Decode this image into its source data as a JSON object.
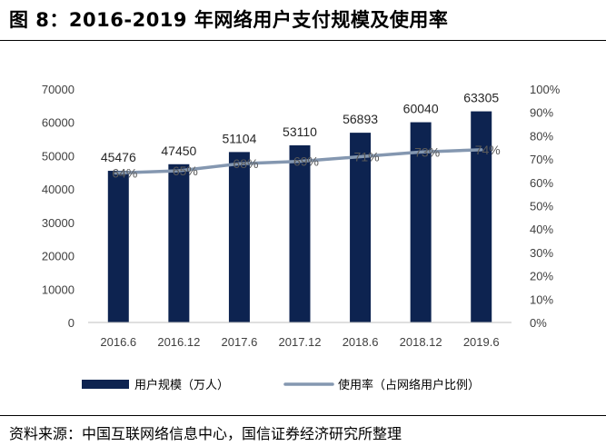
{
  "header": {
    "title": "图 8：2016-2019 年网络用户支付规模及使用率"
  },
  "footer": {
    "source": "资料来源：中国互联网络信息中心，国信证券经济研究所整理"
  },
  "colors": {
    "bar": "#0d2350",
    "line": "#8497b0",
    "axis": "#bfbfbf"
  },
  "chart_data": {
    "type": "bar",
    "title": "2016-2019 年网络用户支付规模及使用率",
    "categories": [
      "2016.6",
      "2016.12",
      "2017.6",
      "2017.12",
      "2018.6",
      "2018.12",
      "2019.6"
    ],
    "series": [
      {
        "name": "用户规模（万人）",
        "type": "bar",
        "axis": "left",
        "values": [
          45476,
          47450,
          51104,
          53110,
          56893,
          60040,
          63305
        ],
        "labels": [
          "45476",
          "47450",
          "51104",
          "53110",
          "56893",
          "60040",
          "63305"
        ]
      },
      {
        "name": "使用率（占网络用户比例）",
        "type": "line",
        "axis": "right",
        "values": [
          64,
          65,
          68,
          69,
          71,
          73,
          74
        ],
        "labels": [
          "64%",
          "65%",
          "68%",
          "69%",
          "71%",
          "73%",
          "74%"
        ]
      }
    ],
    "y_left": {
      "lim": [
        0,
        70000
      ],
      "ticks": [
        "0",
        "10000",
        "20000",
        "30000",
        "40000",
        "50000",
        "60000",
        "70000"
      ]
    },
    "y_right": {
      "lim": [
        0,
        100
      ],
      "ticks": [
        "0%",
        "10%",
        "20%",
        "30%",
        "40%",
        "50%",
        "60%",
        "70%",
        "80%",
        "90%",
        "100%"
      ]
    },
    "legend": {
      "position": "bottom",
      "items": [
        "用户规模（万人）",
        "使用率（占网络用户比例）"
      ]
    }
  }
}
